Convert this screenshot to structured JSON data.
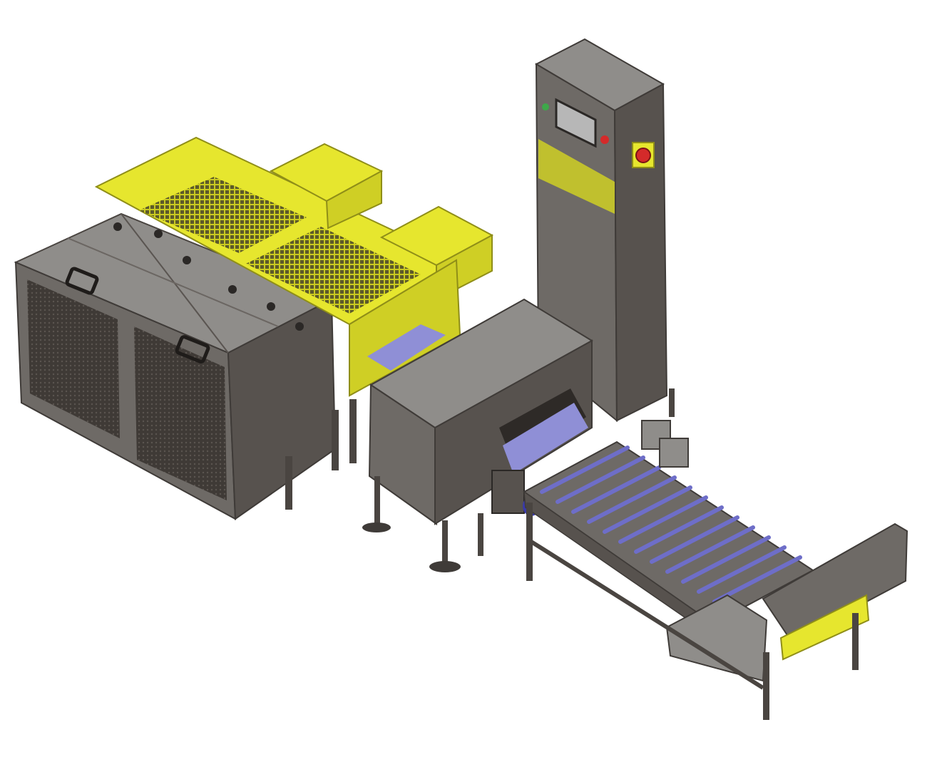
{
  "image": {
    "subject": "industrial-packaging-line-render",
    "background_color": "#ffffff"
  },
  "colors": {
    "safety_yellow": "#e6e62e",
    "yellow_dark": "#b9b81f",
    "yellow_side": "#cfcf25",
    "steel_top": "#8f8d8a",
    "steel_front": "#6e6a66",
    "steel_side": "#57524e",
    "steel_dark": "#3f3b38",
    "belt_blue": "#8f8fd6",
    "roller_blue": "#6e6ec8",
    "screen": "#b7b7b7",
    "estop_red": "#d42a2a",
    "lamp_green": "#3ea84a"
  },
  "components": [
    {
      "name": "twin-chiller-housing"
    },
    {
      "name": "yellow-mesh-guard"
    },
    {
      "name": "tunnel-unit"
    },
    {
      "name": "control-cabinet-tower"
    },
    {
      "name": "roller-conveyor"
    }
  ]
}
